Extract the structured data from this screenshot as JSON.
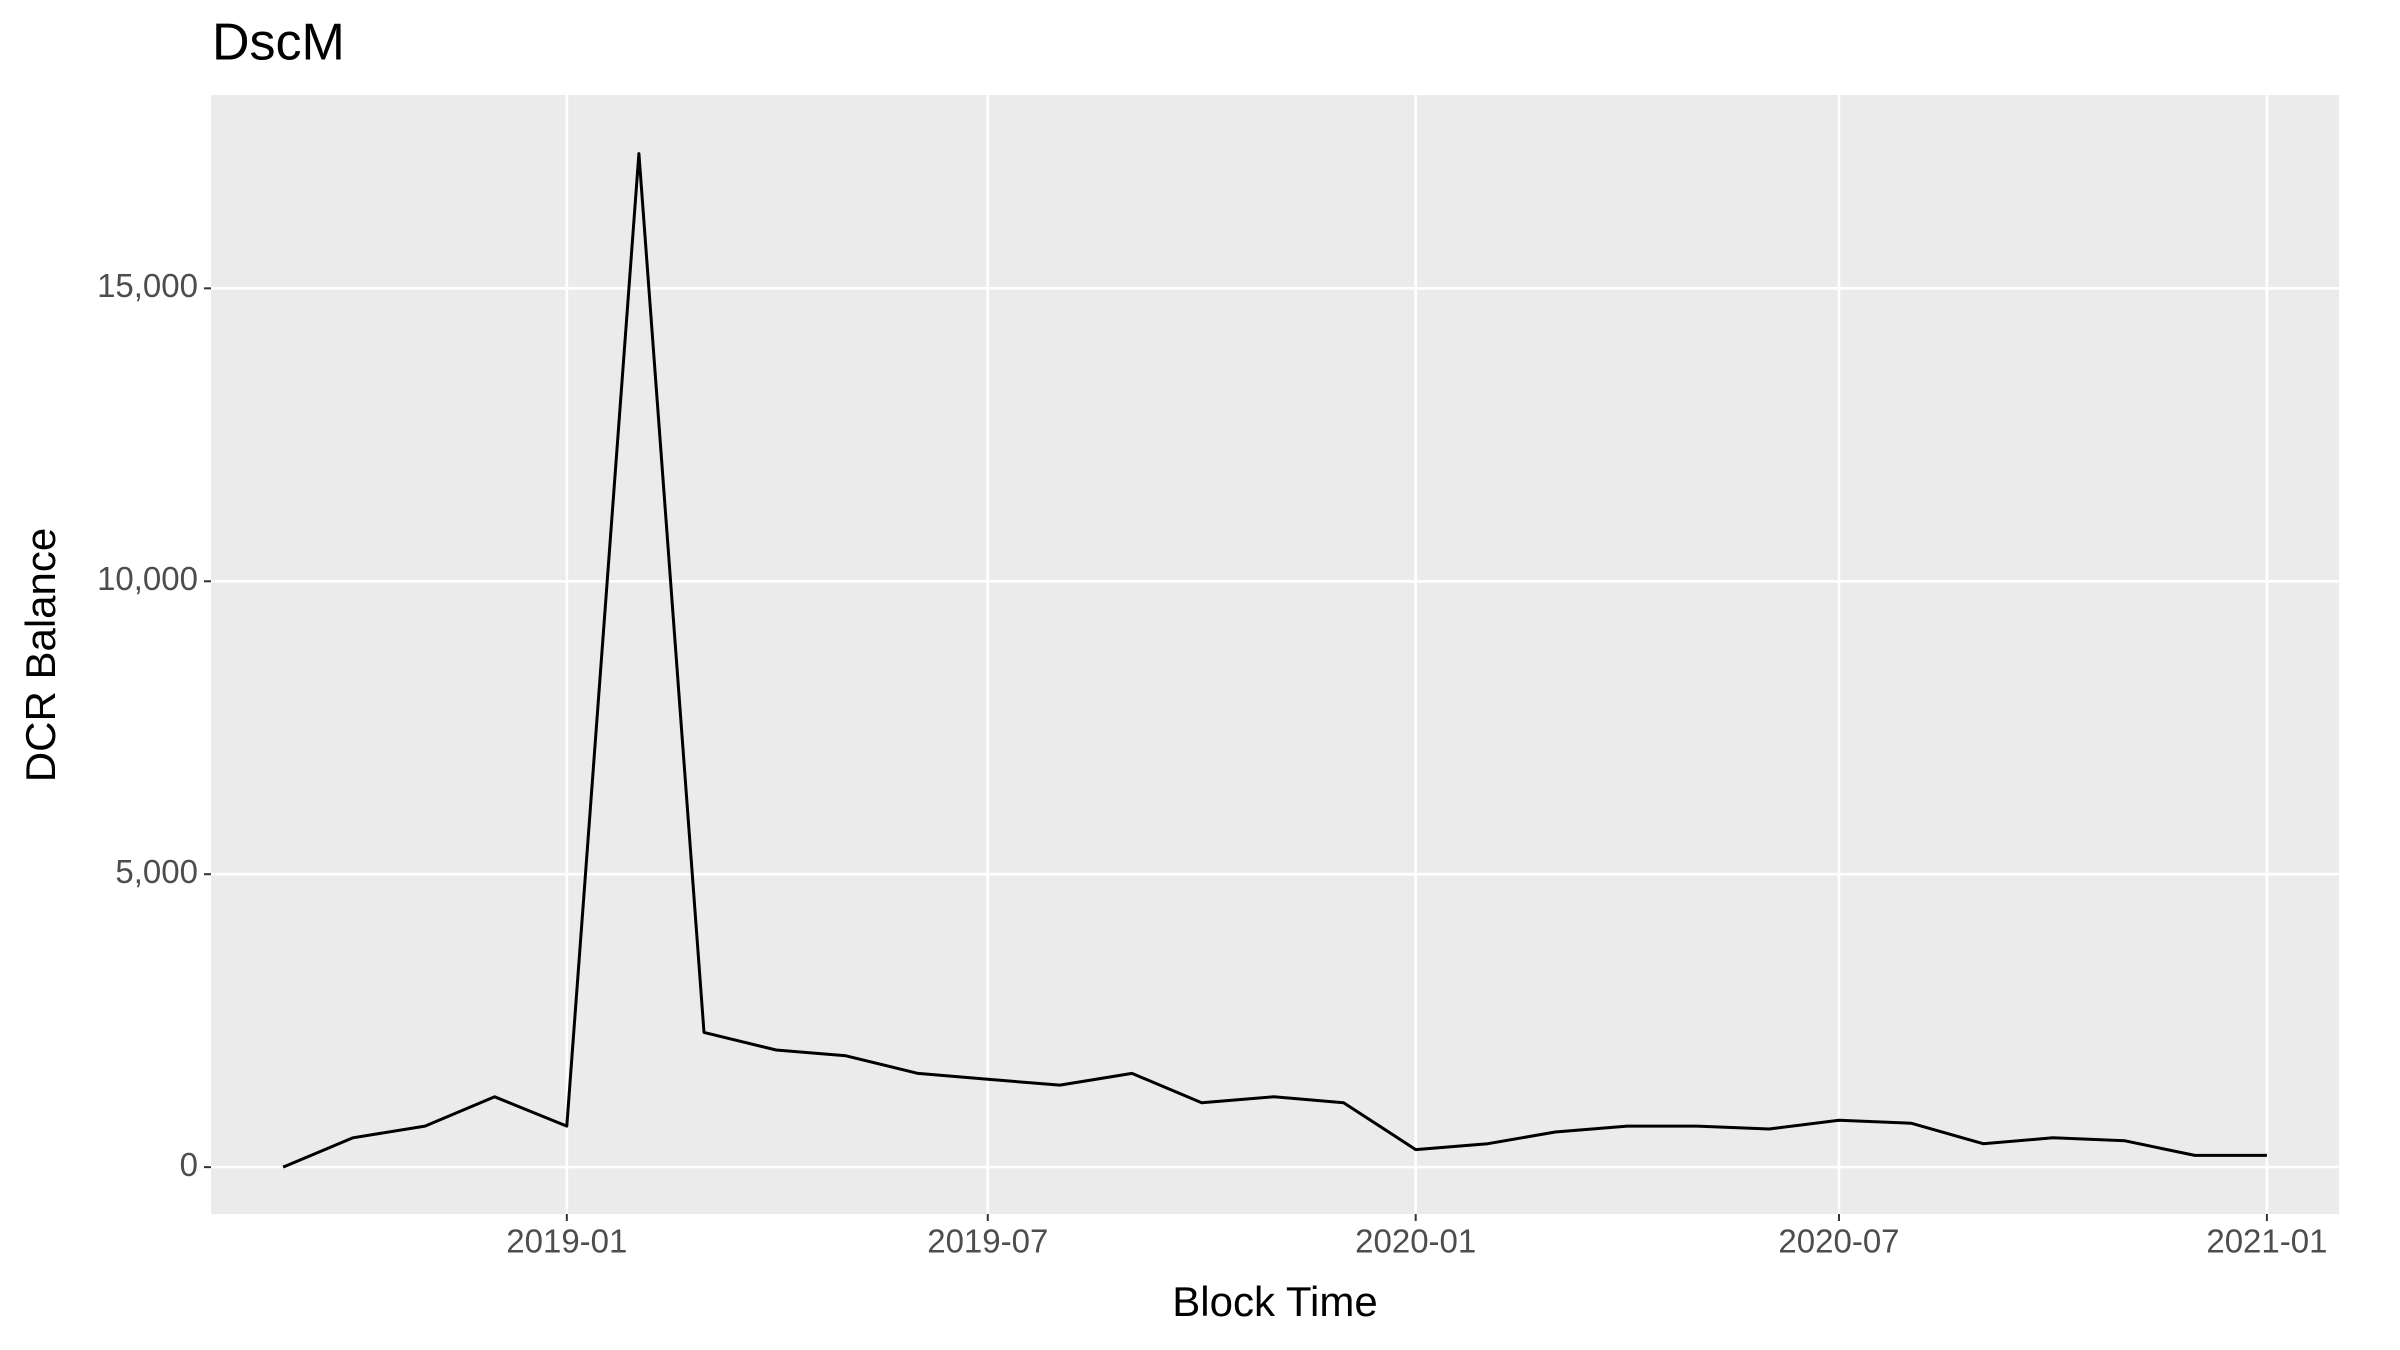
{
  "chart_data": {
    "type": "line",
    "title": "DscM",
    "x_label": "Block Time",
    "y_label": "DCR Balance",
    "x": [
      "2018-09",
      "2018-10",
      "2018-11",
      "2018-12",
      "2019-01",
      "2019-02",
      "2019-03",
      "2019-04",
      "2019-05",
      "2019-06",
      "2019-07",
      "2019-08",
      "2019-09",
      "2019-10",
      "2019-11",
      "2019-12",
      "2020-01",
      "2020-02",
      "2020-03",
      "2020-04",
      "2020-05",
      "2020-06",
      "2020-07",
      "2020-08",
      "2020-09",
      "2020-10",
      "2020-11",
      "2020-12",
      "2021-01"
    ],
    "series": [
      {
        "name": "DCR Balance",
        "color": "#000000",
        "values": [
          0,
          500,
          700,
          1200,
          700,
          17300,
          2300,
          2000,
          1900,
          1600,
          1500,
          1400,
          1600,
          1100,
          1200,
          1100,
          300,
          400,
          600,
          700,
          700,
          650,
          800,
          750,
          400,
          500,
          450,
          200,
          200
        ]
      }
    ],
    "xlim": [
      "2018-08",
      "2021-02"
    ],
    "xticks": [
      "2019-01",
      "2019-07",
      "2020-01",
      "2020-07",
      "2021-01"
    ],
    "ylim": [
      -800,
      18300
    ],
    "yticks": [
      0,
      {
        "value": 5000,
        "label": "5,000"
      },
      {
        "value": 10000,
        "label": "10,000"
      },
      {
        "value": 15000,
        "label": "15,000"
      }
    ],
    "grid": true
  }
}
